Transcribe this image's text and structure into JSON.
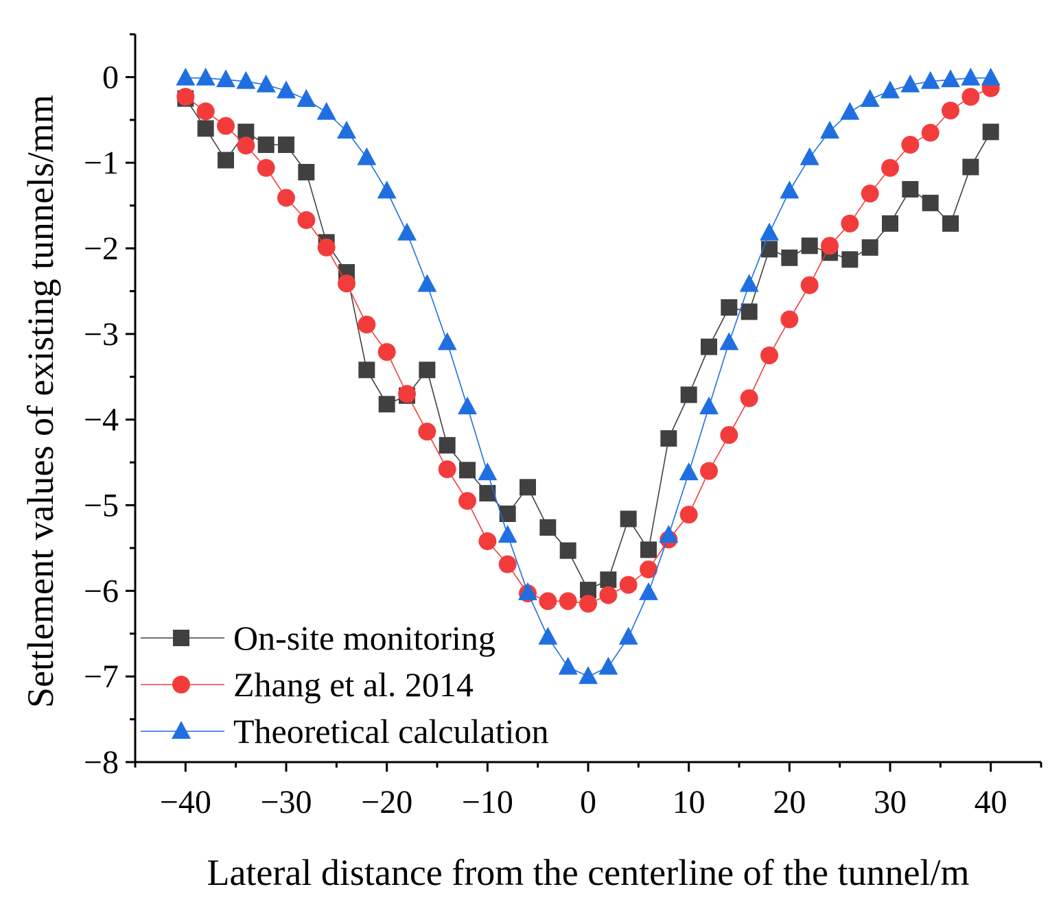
{
  "chart_data": {
    "type": "line",
    "title": "",
    "xlabel": "Lateral distance from the centerline of the tunnel/m",
    "ylabel": "Settlement values of existing tunnels/mm",
    "xlim": [
      -45,
      45
    ],
    "ylim": [
      -8,
      0.5
    ],
    "xticks": [
      -40,
      -30,
      -20,
      -10,
      0,
      10,
      20,
      30,
      40
    ],
    "xtick_labels": [
      "−40",
      "−30",
      "−20",
      "−10",
      "0",
      "10",
      "20",
      "30",
      "40"
    ],
    "yticks": [
      0,
      -1,
      -2,
      -3,
      -4,
      -5,
      -6,
      -7,
      -8
    ],
    "ytick_labels": [
      "0",
      "−1",
      "−2",
      "−3",
      "−4",
      "−5",
      "−6",
      "−7",
      "−8"
    ],
    "grid": false,
    "legend_position": "bottom-left",
    "x": [
      -40,
      -38,
      -36,
      -34,
      -32,
      -30,
      -28,
      -26,
      -24,
      -22,
      -20,
      -18,
      -16,
      -14,
      -12,
      -10,
      -8,
      -6,
      -4,
      -2,
      0,
      2,
      4,
      6,
      8,
      10,
      12,
      14,
      16,
      18,
      20,
      22,
      24,
      26,
      28,
      30,
      32,
      34,
      36,
      38,
      40
    ],
    "series": [
      {
        "name": "On-site monitoring",
        "color": "#404040",
        "marker": "square",
        "values": [
          -0.25,
          -0.6,
          -0.97,
          -0.64,
          -0.79,
          -0.79,
          -1.11,
          -1.93,
          -2.28,
          -3.42,
          -3.82,
          -3.72,
          -3.42,
          -4.3,
          -4.59,
          -4.86,
          -5.1,
          -4.79,
          -5.26,
          -5.53,
          -5.99,
          -5.87,
          -5.16,
          -5.52,
          -4.22,
          -3.71,
          -3.15,
          -2.69,
          -2.74,
          -2.01,
          -2.11,
          -1.97,
          -2.05,
          -2.13,
          -1.99,
          -1.71,
          -1.31,
          -1.47,
          -1.71,
          -1.05,
          -0.64
        ]
      },
      {
        "name": "Zhang et al. 2014",
        "color": "#f23c3c",
        "marker": "circle",
        "values": [
          -0.23,
          -0.4,
          -0.57,
          -0.8,
          -1.06,
          -1.41,
          -1.67,
          -1.99,
          -2.41,
          -2.89,
          -3.21,
          -3.7,
          -4.14,
          -4.58,
          -4.95,
          -5.42,
          -5.69,
          -6.03,
          -6.12,
          -6.12,
          -6.15,
          -6.05,
          -5.93,
          -5.75,
          -5.4,
          -5.11,
          -4.6,
          -4.18,
          -3.75,
          -3.25,
          -2.83,
          -2.43,
          -1.97,
          -1.71,
          -1.36,
          -1.06,
          -0.79,
          -0.65,
          -0.39,
          -0.23,
          -0.13
        ]
      },
      {
        "name": "Theoretical calculation",
        "color": "#1f6fe0",
        "marker": "triangle",
        "values": [
          -0.01,
          -0.01,
          -0.03,
          -0.05,
          -0.09,
          -0.16,
          -0.26,
          -0.41,
          -0.63,
          -0.94,
          -1.33,
          -1.82,
          -2.42,
          -3.1,
          -3.85,
          -4.62,
          -5.35,
          -6.02,
          -6.54,
          -6.89,
          -7.0,
          -6.89,
          -6.54,
          -6.02,
          -5.35,
          -4.62,
          -3.85,
          -3.1,
          -2.42,
          -1.82,
          -1.33,
          -0.94,
          -0.63,
          -0.41,
          -0.26,
          -0.16,
          -0.09,
          -0.05,
          -0.03,
          -0.01,
          -0.01
        ]
      }
    ]
  }
}
